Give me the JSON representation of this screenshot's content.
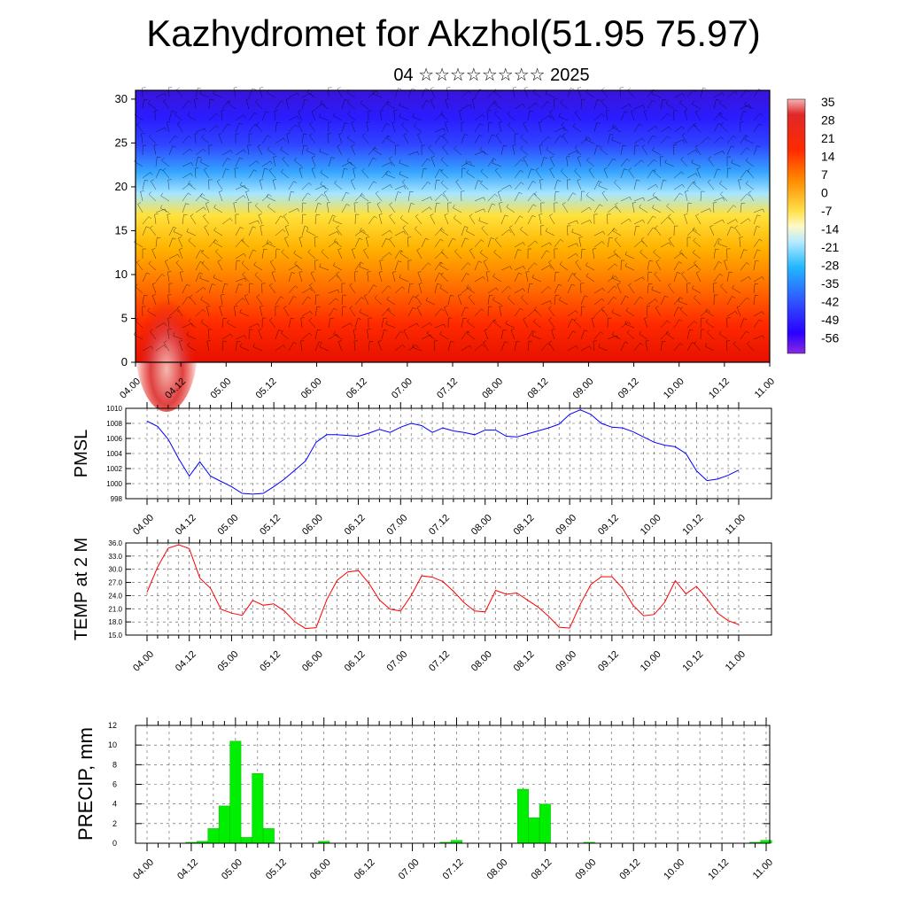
{
  "header": {
    "title": "Kazhydromet for Akzhol(51.95 75.97)",
    "subtitle": "04 ☆☆☆☆☆☆☆☆ 2025"
  },
  "colors": {
    "pmsl_line": "#0000ff",
    "temp_line": "#ff0000",
    "precip_bar": "#00ee00",
    "colorbar_stops": [
      "#8a2be2",
      "#2a00ff",
      "#3f7fff",
      "#22ccff",
      "#ffffff",
      "#ffe24a",
      "#ffa000",
      "#ff3300",
      "#e00000",
      "#f4b4b4"
    ]
  },
  "chart_data": [
    {
      "type": "heatmap",
      "title": "",
      "xlabel": "",
      "ylabel": "",
      "x_tick_labels": [
        "04.00",
        "04.12",
        "05.00",
        "05.12",
        "06.00",
        "06.12",
        "07.00",
        "07.12",
        "08.00",
        "08.12",
        "09.00",
        "09.12",
        "10.00",
        "10.12",
        "11.00"
      ],
      "y_tick_labels": [
        "0",
        "5",
        "10",
        "15",
        "20",
        "25",
        "30"
      ],
      "ylim": [
        0,
        31
      ],
      "colorbar_labels": [
        "35",
        "28",
        "21",
        "14",
        "7",
        "0",
        "-7",
        "-14",
        "-21",
        "-28",
        "-35",
        "-42",
        "-49",
        "-56"
      ],
      "overlay": "wind barbs"
    },
    {
      "type": "line",
      "ylabel": "PMSL",
      "ylim": [
        998,
        1010
      ],
      "y_tick_labels": [
        "1010",
        "1008",
        "1006",
        "1004",
        "1002",
        "1000",
        "998"
      ],
      "x_tick_labels": [
        "04.00",
        "04.12",
        "05.00",
        "05.12",
        "06.00",
        "06.12",
        "07.00",
        "07.12",
        "08.00",
        "08.12",
        "09.00",
        "09.12",
        "10.00",
        "10.12",
        "11.00"
      ],
      "x_hours": [
        0,
        3,
        6,
        9,
        12,
        15,
        18,
        21,
        24,
        27,
        30,
        33,
        36,
        39,
        42,
        45,
        48,
        51,
        54,
        57,
        60,
        63,
        66,
        69,
        72,
        75,
        78,
        81,
        84,
        87,
        90,
        93,
        96,
        99,
        102,
        105,
        108,
        111,
        114,
        117,
        120,
        123,
        126,
        129,
        132,
        135,
        138,
        141,
        144,
        147,
        150,
        153,
        156,
        159,
        162,
        165,
        168
      ],
      "values": [
        1008.3,
        1007.6,
        1005.9,
        1003.3,
        1001.0,
        1002.9,
        1001.0,
        1000.3,
        999.6,
        998.7,
        998.6,
        998.7,
        999.6,
        1000.6,
        1001.8,
        1003.0,
        1005.5,
        1006.5,
        1006.5,
        1006.4,
        1006.3,
        1006.7,
        1007.2,
        1006.8,
        1007.5,
        1008.0,
        1007.7,
        1006.8,
        1007.4,
        1007.0,
        1006.8,
        1006.5,
        1007.1,
        1007.1,
        1006.3,
        1006.2,
        1006.6,
        1007.0,
        1007.4,
        1007.9,
        1009.2,
        1009.8,
        1009.2,
        1008.0,
        1007.5,
        1007.4,
        1006.9,
        1006.2,
        1005.5,
        1005.1,
        1004.9,
        1004.0,
        1001.7,
        1000.4,
        1000.6,
        1001.1,
        1001.8
      ]
    },
    {
      "type": "line",
      "ylabel": "TEMP at 2 M",
      "ylim": [
        15,
        36
      ],
      "y_tick_labels": [
        "36.0",
        "33.0",
        "30.0",
        "27.0",
        "24.0",
        "21.0",
        "18.0",
        "15.0"
      ],
      "x_tick_labels": [
        "04.00",
        "04.12",
        "05.00",
        "05.12",
        "06.00",
        "06.12",
        "07.00",
        "07.12",
        "08.00",
        "08.12",
        "09.00",
        "09.12",
        "10.00",
        "10.12",
        "11.00"
      ],
      "x_hours": [
        0,
        3,
        6,
        9,
        12,
        15,
        18,
        21,
        24,
        27,
        30,
        33,
        36,
        39,
        42,
        45,
        48,
        51,
        54,
        57,
        60,
        63,
        66,
        69,
        72,
        75,
        78,
        81,
        84,
        87,
        90,
        93,
        96,
        99,
        102,
        105,
        108,
        111,
        114,
        117,
        120,
        123,
        126,
        129,
        132,
        135,
        138,
        141,
        144,
        147,
        150,
        153,
        156,
        159,
        162,
        165,
        168
      ],
      "values": [
        24.8,
        30.5,
        34.8,
        35.6,
        34.7,
        28.0,
        25.7,
        20.9,
        20.0,
        19.5,
        22.9,
        21.8,
        22.1,
        20.5,
        18.0,
        16.5,
        16.7,
        23.0,
        27.5,
        29.4,
        29.7,
        26.8,
        23.0,
        20.9,
        20.5,
        24.0,
        28.5,
        28.2,
        27.2,
        25.0,
        22.4,
        20.5,
        20.3,
        25.2,
        24.3,
        24.6,
        23.0,
        21.4,
        19.3,
        16.8,
        16.6,
        22.0,
        26.5,
        28.3,
        28.3,
        25.7,
        21.8,
        19.4,
        19.7,
        22.5,
        27.4,
        24.4,
        26.1,
        23.3,
        20.0,
        18.3,
        17.4
      ]
    },
    {
      "type": "bar",
      "ylabel": "PRECIP, mm",
      "ylim": [
        0,
        12
      ],
      "y_tick_labels": [
        "12",
        "10",
        "8",
        "6",
        "4",
        "2",
        "0"
      ],
      "x_tick_labels": [
        "04.00",
        "04.12",
        "05.00",
        "05.12",
        "06.00",
        "06.12",
        "07.00",
        "07.12",
        "08.00",
        "08.12",
        "09.00",
        "09.12",
        "10.00",
        "10.12",
        "11.00"
      ],
      "x_hours": [
        0,
        3,
        6,
        9,
        12,
        15,
        18,
        21,
        24,
        27,
        30,
        33,
        36,
        39,
        42,
        45,
        48,
        51,
        54,
        57,
        60,
        63,
        66,
        69,
        72,
        75,
        78,
        81,
        84,
        87,
        90,
        93,
        96,
        99,
        102,
        105,
        108,
        111,
        114,
        117,
        120,
        123,
        126,
        129,
        132,
        135,
        138,
        141,
        144,
        147,
        150,
        153,
        156,
        159,
        162,
        165,
        168
      ],
      "values": [
        0,
        0,
        0,
        0,
        0.1,
        0.2,
        1.5,
        3.8,
        10.4,
        0.6,
        7.1,
        1.5,
        0,
        0,
        0,
        0,
        0.2,
        0,
        0,
        0,
        0,
        0,
        0,
        0,
        0,
        0,
        0,
        0.1,
        0.3,
        0,
        0,
        0,
        0,
        0,
        5.5,
        2.6,
        4.0,
        0,
        0,
        0,
        0.1,
        0,
        0,
        0,
        0,
        0,
        0,
        0,
        0,
        0,
        0,
        0,
        0,
        0,
        0,
        0.1,
        0.3
      ]
    }
  ]
}
